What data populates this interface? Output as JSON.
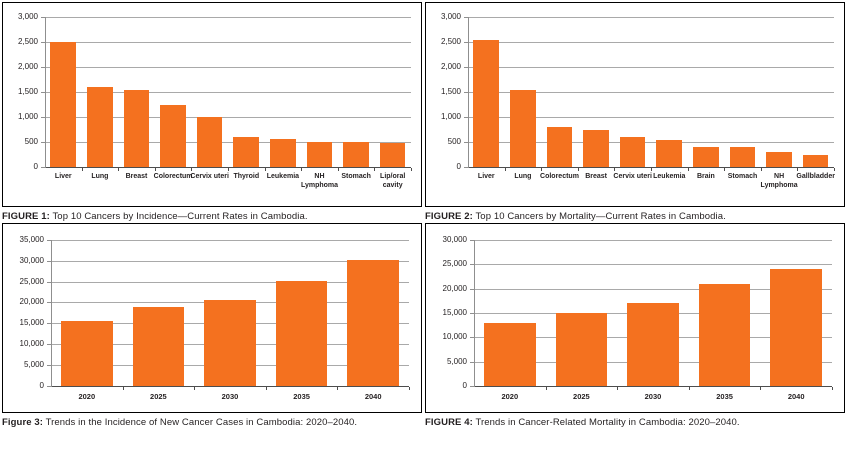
{
  "colors": {
    "bar": "#f4711f",
    "gridline": "#a9a9a9",
    "axis": "#8f8f8f",
    "baseline": "#4d4d4d",
    "text": "#231f20",
    "panel_border": "#000000"
  },
  "chart_data": [
    {
      "id": "figure-1",
      "type": "bar",
      "caption_label": "FIGURE 1:",
      "caption_text": " Top 10 Cancers by Incidence—Current Rates in Cambodia.",
      "categories": [
        "Liver",
        "Lung",
        "Breast",
        "Colorectum",
        "Cervix uteri",
        "Thyroid",
        "Leukemia",
        "NH Lymphoma",
        "Stomach",
        "Lip/oral cavity"
      ],
      "values": [
        2500,
        1600,
        1550,
        1250,
        1000,
        600,
        560,
        510,
        500,
        480
      ],
      "ylim": [
        0,
        3000
      ],
      "ytick_step": 500,
      "yticklabels": [
        "0",
        "500",
        "1,000",
        "1,500",
        "2,000",
        "2,500",
        "3,000"
      ],
      "xlabel": "",
      "ylabel": "",
      "grid": true,
      "legend": null
    },
    {
      "id": "figure-2",
      "type": "bar",
      "caption_label": "FIGURE 2:",
      "caption_text": " Top 10 Cancers by Mortality—Current Rates in Cambodia.",
      "categories": [
        "Liver",
        "Lung",
        "Colorectum",
        "Breast",
        "Cervix uteri",
        "Leukemia",
        "Brain",
        "Stomach",
        "NH Lymphoma",
        "Gallbladder"
      ],
      "values": [
        2550,
        1550,
        800,
        750,
        600,
        550,
        400,
        400,
        300,
        250
      ],
      "ylim": [
        0,
        3000
      ],
      "ytick_step": 500,
      "yticklabels": [
        "0",
        "500",
        "1,000",
        "1,500",
        "2,000",
        "2,500",
        "3,000"
      ],
      "xlabel": "",
      "ylabel": "",
      "grid": true,
      "legend": null
    },
    {
      "id": "figure-3",
      "type": "bar",
      "caption_label": "Figure 3:",
      "caption_text": " Trends in the Incidence of New Cancer Cases in Cambodia: 2020–2040.",
      "categories": [
        "2020",
        "2025",
        "2030",
        "2035",
        "2040"
      ],
      "values": [
        15500,
        19000,
        20500,
        25200,
        30100
      ],
      "ylim": [
        0,
        35000
      ],
      "ytick_step": 5000,
      "yticklabels": [
        "0",
        "5,000",
        "10,000",
        "15,000",
        "20,000",
        "25,000",
        "30,000",
        "35,000"
      ],
      "xlabel": "",
      "ylabel": "",
      "grid": true,
      "legend": null
    },
    {
      "id": "figure-4",
      "type": "bar",
      "caption_label": "FIGURE 4:",
      "caption_text": " Trends in Cancer-Related Mortality in Cambodia: 2020–2040.",
      "categories": [
        "2020",
        "2025",
        "2030",
        "2035",
        "2040"
      ],
      "values": [
        13000,
        15000,
        17000,
        21000,
        24000
      ],
      "ylim": [
        0,
        30000
      ],
      "ytick_step": 5000,
      "yticklabels": [
        "0",
        "5,000",
        "10,000",
        "15,000",
        "20,000",
        "25,000",
        "30,000"
      ],
      "xlabel": "",
      "ylabel": "",
      "grid": true,
      "legend": null
    }
  ]
}
